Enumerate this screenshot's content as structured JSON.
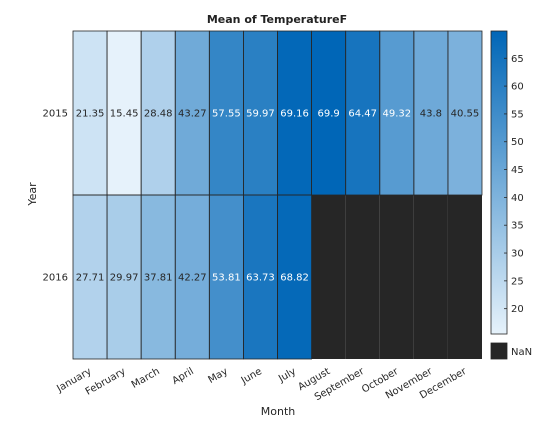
{
  "chart_data": {
    "type": "heatmap",
    "title": "Mean of TemperatureF",
    "xlabel": "Month",
    "ylabel": "Year",
    "x_categories": [
      "January",
      "February",
      "March",
      "April",
      "May",
      "June",
      "July",
      "August",
      "September",
      "October",
      "November",
      "December"
    ],
    "y_categories": [
      "2015",
      "2016"
    ],
    "values": [
      [
        21.35,
        15.45,
        28.48,
        43.27,
        57.55,
        59.97,
        69.16,
        69.9,
        64.47,
        49.32,
        43.8,
        40.55
      ],
      [
        27.71,
        29.97,
        37.81,
        42.27,
        53.81,
        63.73,
        68.82,
        null,
        null,
        null,
        null,
        null
      ]
    ],
    "cell_labels": [
      [
        "21.35",
        "15.45",
        "28.48",
        "43.27",
        "57.55",
        "59.97",
        "69.16",
        "69.9",
        "64.47",
        "49.32",
        "43.8",
        "40.55"
      ],
      [
        "27.71",
        "29.97",
        "37.81",
        "42.27",
        "53.81",
        "63.73",
        "68.82",
        "",
        "",
        "",
        "",
        ""
      ]
    ],
    "color_range": [
      15.45,
      69.9
    ],
    "colormap": {
      "low": "#e6f2fb",
      "high": "#0066b7",
      "nan": "#262626"
    },
    "colorbar_ticks": [
      20,
      25,
      30,
      35,
      40,
      45,
      50,
      55,
      60,
      65
    ],
    "colorbar_tick_labels": [
      "20",
      "25",
      "30",
      "35",
      "40",
      "45",
      "50",
      "55",
      "60",
      "65"
    ],
    "nan_label": "NaN",
    "colorbar_placement": "right"
  }
}
